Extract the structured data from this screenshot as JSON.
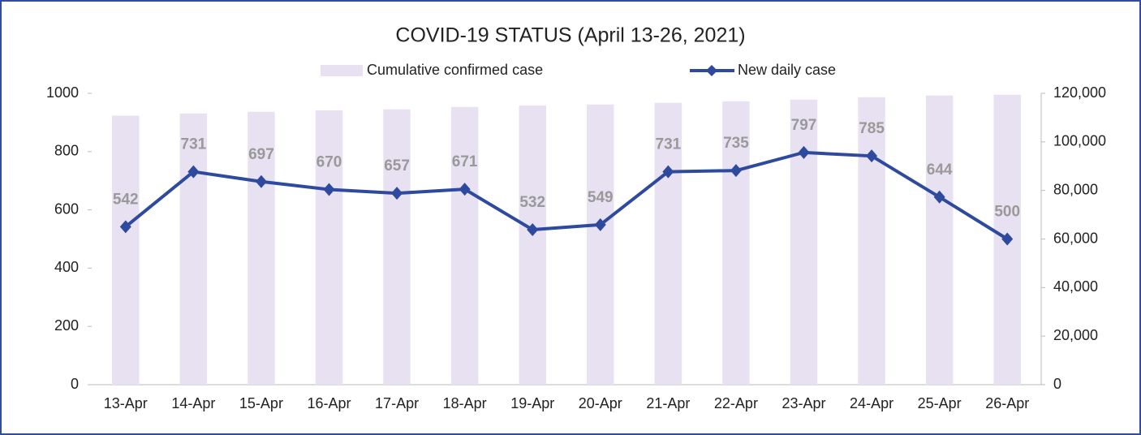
{
  "chart_data": {
    "type": "combo",
    "title": "COVID-19 STATUS (April 13-26, 2021)",
    "categories": [
      "13-Apr",
      "14-Apr",
      "15-Apr",
      "16-Apr",
      "17-Apr",
      "18-Apr",
      "19-Apr",
      "20-Apr",
      "21-Apr",
      "22-Apr",
      "23-Apr",
      "24-Apr",
      "25-Apr",
      "26-Apr"
    ],
    "series": [
      {
        "name": "Cumulative confirmed case",
        "type": "bar",
        "axis": "y2",
        "color": "#e7e1f1",
        "values": [
          110800,
          111700,
          112400,
          113000,
          113400,
          114400,
          115000,
          115400,
          116100,
          116700,
          117400,
          118400,
          119100,
          119400
        ]
      },
      {
        "name": "New daily case",
        "type": "line",
        "axis": "y",
        "color": "#2e4a9e",
        "values": [
          542,
          731,
          697,
          670,
          657,
          671,
          532,
          549,
          731,
          735,
          797,
          785,
          644,
          500
        ]
      }
    ],
    "ylim": [
      0,
      1000
    ],
    "yticks": [
      0,
      200,
      400,
      600,
      800,
      1000
    ],
    "y2lim": [
      0,
      120000
    ],
    "y2ticks": [
      0,
      {
        "value": 20000,
        "label": "20,000"
      },
      {
        "value": 40000,
        "label": "40,000"
      },
      {
        "value": 60000,
        "label": "60,000"
      },
      {
        "value": 80000,
        "label": "80,000"
      },
      {
        "value": 100000,
        "label": "100,000"
      },
      {
        "value": 120000,
        "label": "120,000"
      }
    ],
    "legend": "top",
    "grid": false
  }
}
